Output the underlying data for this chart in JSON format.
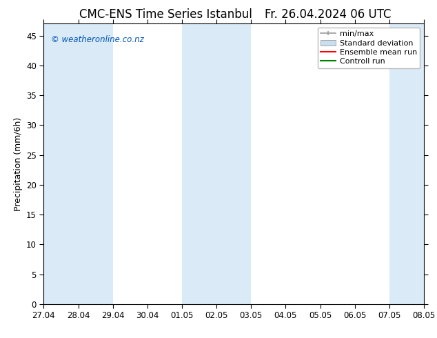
{
  "title_left": "CMC-ENS Time Series Istanbul",
  "title_right": "Fr. 26.04.2024 06 UTC",
  "ylabel": "Precipitation (mm/6h)",
  "xlim_start": 0,
  "xlim_end": 11,
  "ylim": [
    0,
    47
  ],
  "yticks": [
    0,
    5,
    10,
    15,
    20,
    25,
    30,
    35,
    40,
    45
  ],
  "xtick_labels": [
    "27.04",
    "28.04",
    "29.04",
    "30.04",
    "01.05",
    "02.05",
    "03.05",
    "04.05",
    "05.05",
    "06.05",
    "07.05",
    "08.05"
  ],
  "background_color": "#ffffff",
  "plot_bg_color": "#ffffff",
  "shaded_color": "#daeaf7",
  "shaded_bands": [
    {
      "x_start": 0,
      "x_end": 1
    },
    {
      "x_start": 1,
      "x_end": 2
    },
    {
      "x_start": 4,
      "x_end": 5
    },
    {
      "x_start": 5,
      "x_end": 6
    },
    {
      "x_start": 10,
      "x_end": 11
    }
  ],
  "legend_entries": [
    {
      "label": "min/max",
      "color": "#999999",
      "type": "errorbar"
    },
    {
      "label": "Standard deviation",
      "color": "#c8dff0",
      "type": "bar"
    },
    {
      "label": "Ensemble mean run",
      "color": "#ff0000",
      "type": "line"
    },
    {
      "label": "Controll run",
      "color": "#008000",
      "type": "line"
    }
  ],
  "watermark": "© weatheronline.co.nz",
  "watermark_color": "#0055bb",
  "title_fontsize": 12,
  "tick_fontsize": 8.5,
  "ylabel_fontsize": 9,
  "legend_fontsize": 8
}
